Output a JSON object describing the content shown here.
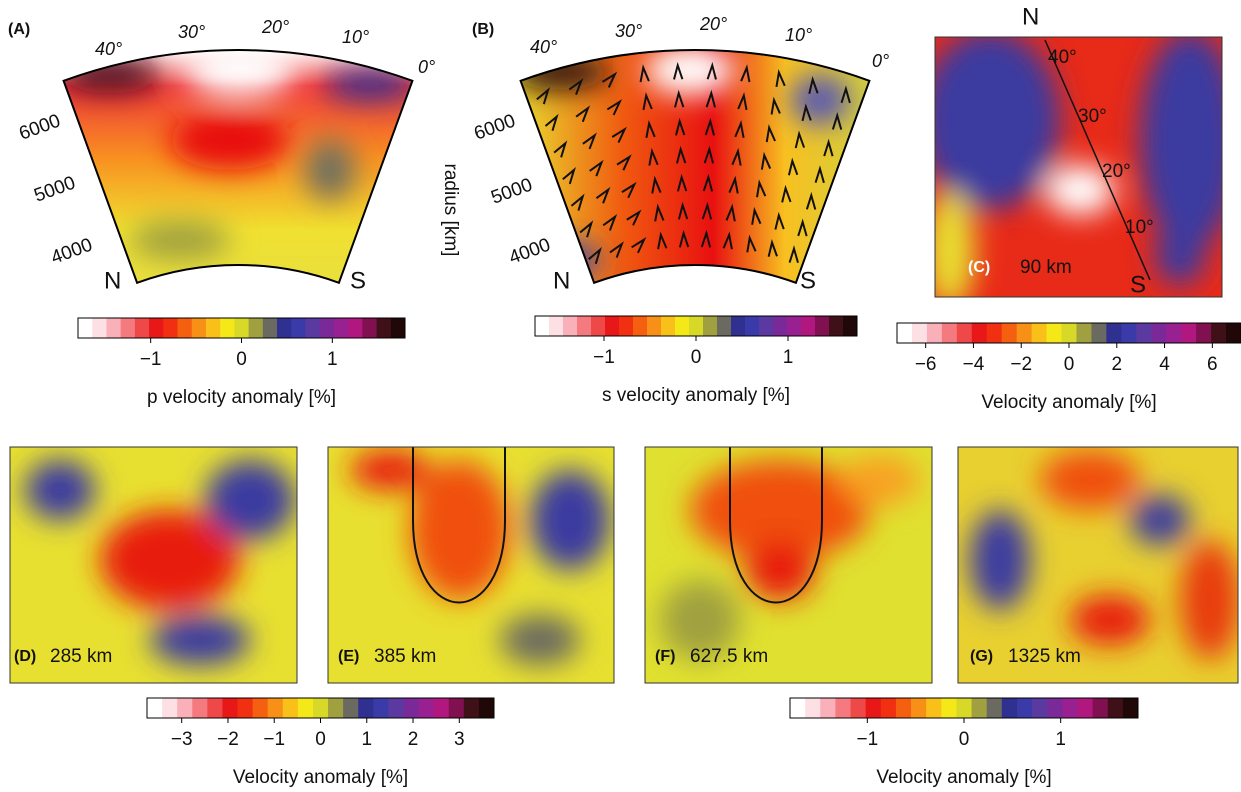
{
  "panel_a": {
    "label": "(A)",
    "angle_labels": [
      "40°",
      "30°",
      "20°",
      "10°",
      "0°"
    ],
    "radius_labels": [
      "6000",
      "5000",
      "4000"
    ],
    "north": "N",
    "south": "S"
  },
  "radius_axis_label": "radius [km]",
  "panel_b": {
    "label": "(B)",
    "angle_labels": [
      "40°",
      "30°",
      "20°",
      "10°",
      "0°"
    ],
    "radius_labels": [
      "6000",
      "5000",
      "4000"
    ],
    "north": "N",
    "south": "S"
  },
  "panel_c": {
    "label": "(C)",
    "depth": "90 km",
    "north": "N",
    "south": "S",
    "latitude_labels": [
      "40°",
      "30°",
      "20°",
      "10°"
    ]
  },
  "panel_d": {
    "label": "(D)",
    "depth": "285 km"
  },
  "panel_e": {
    "label": "(E)",
    "depth": "385 km"
  },
  "panel_f": {
    "label": "(F)",
    "depth": "627.5 km"
  },
  "panel_g": {
    "label": "(G)",
    "depth": "1325 km"
  },
  "colorbars": [
    {
      "title": "p velocity anomaly [%]",
      "range": [
        -1.8,
        1.8
      ],
      "ticks": [
        {
          "value": -1,
          "label": "−1"
        },
        0,
        1
      ]
    },
    {
      "title": "s velocity anomaly [%]",
      "range": [
        -1.75,
        1.75
      ],
      "ticks": [
        {
          "value": -1,
          "label": "−1"
        },
        0,
        1
      ]
    },
    {
      "title": "Velocity anomaly [%]",
      "range": [
        -7.2,
        7.2
      ],
      "ticks": [
        {
          "value": -6,
          "label": "−6"
        },
        {
          "value": -4,
          "label": "−4"
        },
        {
          "value": -2,
          "label": "−2"
        },
        0,
        2,
        4,
        6
      ]
    },
    {
      "title": "Velocity anomaly [%]",
      "range": [
        -3.75,
        3.75
      ],
      "ticks": [
        {
          "value": -3,
          "label": "−3"
        },
        {
          "value": -2,
          "label": "−2"
        },
        {
          "value": -1,
          "label": "−1"
        },
        0,
        1,
        2,
        3
      ]
    },
    {
      "title": "Velocity anomaly [%]",
      "range": [
        -1.8,
        1.8
      ],
      "ticks": [
        {
          "value": -1,
          "label": "−1"
        },
        0,
        1
      ]
    }
  ]
}
